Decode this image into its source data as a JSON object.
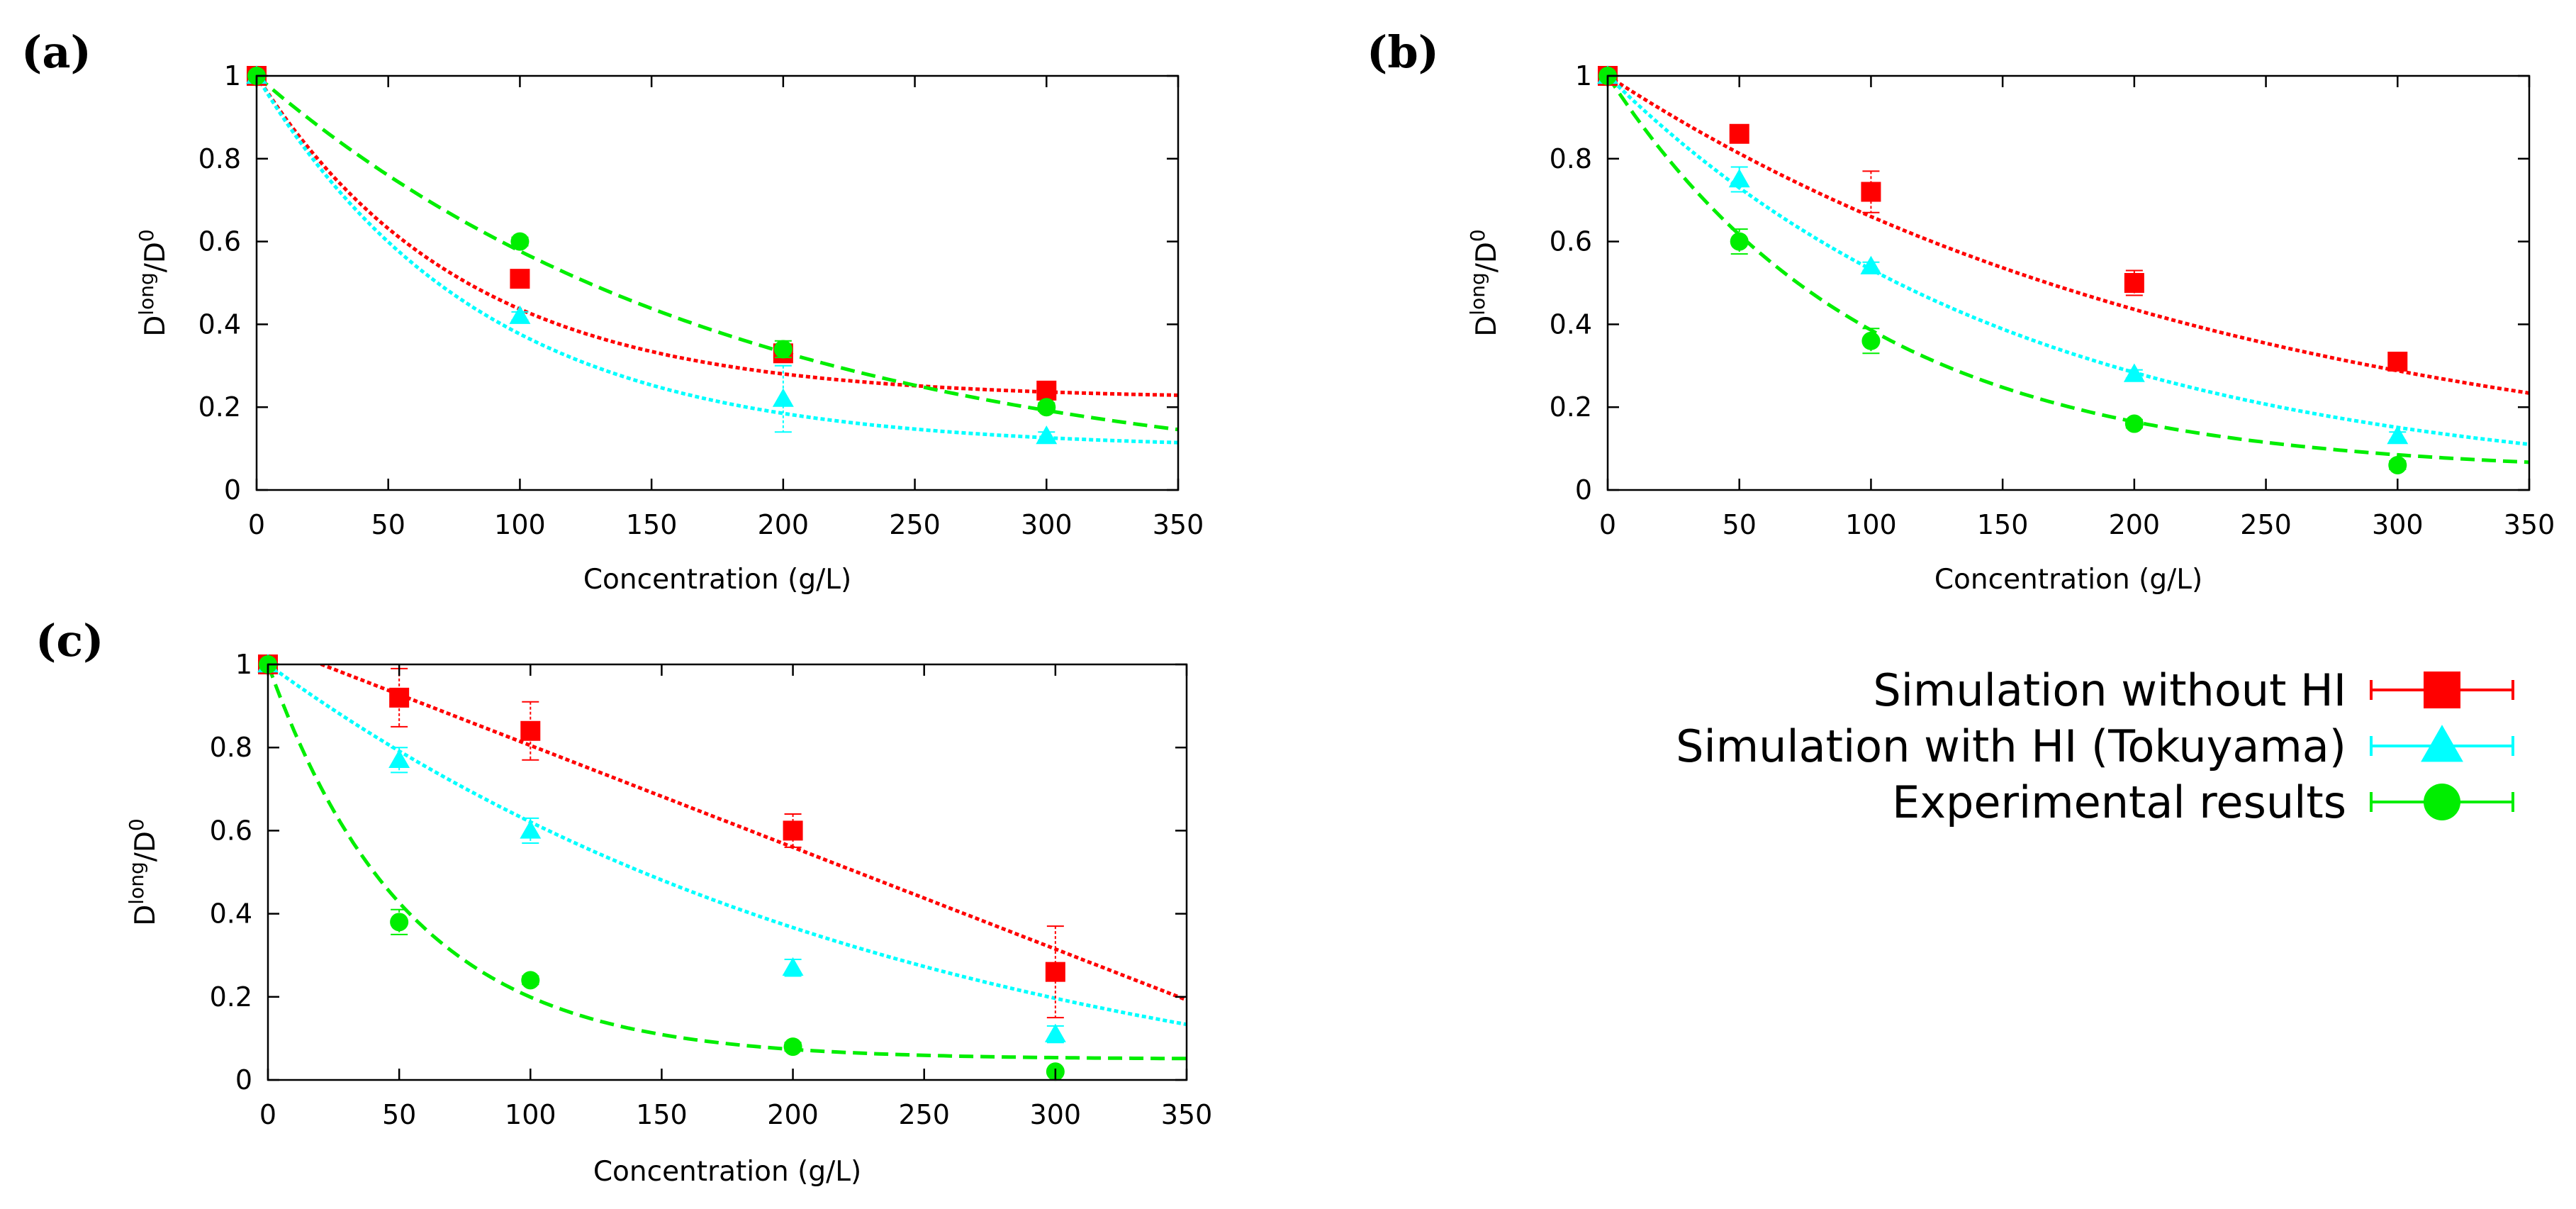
{
  "chart_data": [
    {
      "type": "line",
      "panel_label": "(a)",
      "xlabel": "Concentration (g/L)",
      "ylabel_base": "D",
      "ylabel_sup1": "long",
      "ylabel_mid": "/D",
      "ylabel_sup2": "0",
      "xlim": [
        0,
        350
      ],
      "ylim": [
        0,
        1
      ],
      "xticks": [
        "0",
        "50",
        "100",
        "150",
        "200",
        "250",
        "300",
        "350"
      ],
      "yticks": [
        "0",
        "0.2",
        "0.4",
        "0.6",
        "0.8",
        "1"
      ],
      "series": [
        {
          "name": "Simulation without HI",
          "color": "#ff0000",
          "marker": "square",
          "line": "dotted",
          "x": [
            0,
            100,
            200,
            300
          ],
          "y": [
            1.0,
            0.51,
            0.33,
            0.24
          ],
          "err": [
            0,
            0.02,
            0.02,
            0.01
          ],
          "fit": {
            "a": 0.78,
            "k": 0.0128,
            "c": 0.22
          }
        },
        {
          "name": "Simulation with HI (Tokuyama)",
          "color": "#00ffff",
          "marker": "triangle",
          "line": "dotted",
          "x": [
            0,
            100,
            200,
            300
          ],
          "y": [
            1.0,
            0.42,
            0.22,
            0.13
          ],
          "err": [
            0,
            0.01,
            0.08,
            0.01
          ],
          "fit": {
            "a": 0.9,
            "k": 0.0118,
            "c": 0.1
          }
        },
        {
          "name": "Experimental results",
          "color": "#00ee00",
          "marker": "circle",
          "line": "dashed",
          "x": [
            0,
            100,
            200,
            300
          ],
          "y": [
            1.0,
            0.6,
            0.34,
            0.2
          ],
          "err": [
            0,
            0.01,
            0.02,
            0.01
          ],
          "fit": {
            "a": 1.0,
            "k": 0.0055,
            "c": 0.0
          }
        }
      ]
    },
    {
      "type": "line",
      "panel_label": "(b)",
      "xlabel": "Concentration (g/L)",
      "ylabel_base": "D",
      "ylabel_sup1": "long",
      "ylabel_mid": "/D",
      "ylabel_sup2": "0",
      "xlim": [
        0,
        350
      ],
      "ylim": [
        0,
        1
      ],
      "xticks": [
        "0",
        "50",
        "100",
        "150",
        "200",
        "250",
        "300",
        "350"
      ],
      "yticks": [
        "0",
        "0.2",
        "0.4",
        "0.6",
        "0.8",
        "1"
      ],
      "series": [
        {
          "name": "Simulation without HI",
          "color": "#ff0000",
          "marker": "square",
          "line": "dotted",
          "x": [
            0,
            50,
            100,
            200,
            300
          ],
          "y": [
            1.0,
            0.86,
            0.72,
            0.5,
            0.31
          ],
          "err": [
            0,
            0.02,
            0.05,
            0.03,
            0.01
          ],
          "fit": {
            "a": 1.0,
            "k": 0.00415,
            "c": 0.0
          }
        },
        {
          "name": "Simulation with HI (Tokuyama)",
          "color": "#00ffff",
          "marker": "triangle",
          "line": "dotted",
          "x": [
            0,
            50,
            100,
            200,
            300
          ],
          "y": [
            1.0,
            0.75,
            0.54,
            0.28,
            0.13
          ],
          "err": [
            0,
            0.03,
            0.01,
            0.01,
            0.01
          ],
          "fit": {
            "a": 1.0,
            "k": 0.0063,
            "c": 0.0
          }
        },
        {
          "name": "Experimental results",
          "color": "#00ee00",
          "marker": "circle",
          "line": "dashed",
          "x": [
            0,
            50,
            100,
            200,
            300
          ],
          "y": [
            1.0,
            0.6,
            0.36,
            0.16,
            0.06
          ],
          "err": [
            0,
            0.03,
            0.03,
            0.01,
            0.01
          ],
          "fit": {
            "a": 0.96,
            "k": 0.0102,
            "c": 0.04
          }
        }
      ]
    },
    {
      "type": "line",
      "panel_label": "(c)",
      "xlabel": "Concentration (g/L)",
      "ylabel_base": "D",
      "ylabel_sup1": "long",
      "ylabel_mid": "/D",
      "ylabel_sup2": "0",
      "xlim": [
        0,
        350
      ],
      "ylim": [
        0,
        1
      ],
      "xticks": [
        "0",
        "50",
        "100",
        "150",
        "200",
        "250",
        "300",
        "350"
      ],
      "yticks": [
        "0",
        "0.2",
        "0.4",
        "0.6",
        "0.8",
        "1"
      ],
      "series": [
        {
          "name": "Simulation without HI",
          "color": "#ff0000",
          "marker": "square",
          "line": "dotted",
          "x": [
            0,
            50,
            100,
            200,
            300
          ],
          "y": [
            1.0,
            0.92,
            0.84,
            0.6,
            0.26
          ],
          "err": [
            0,
            0.07,
            0.07,
            0.04,
            0.11
          ],
          "fit": {
            "linear": true,
            "y0": 1.05,
            "slope": -0.00245
          }
        },
        {
          "name": "Simulation with HI (Tokuyama)",
          "color": "#00ffff",
          "marker": "triangle",
          "line": "dotted",
          "x": [
            0,
            50,
            100,
            200,
            300
          ],
          "y": [
            1.0,
            0.77,
            0.6,
            0.27,
            0.11
          ],
          "err": [
            0,
            0.03,
            0.03,
            0.02,
            0.02
          ],
          "fit": {
            "a": 1.15,
            "k": 0.004,
            "c": -0.15
          }
        },
        {
          "name": "Experimental results",
          "color": "#00ee00",
          "marker": "circle",
          "line": "dashed",
          "x": [
            0,
            50,
            100,
            200,
            300
          ],
          "y": [
            1.0,
            0.38,
            0.24,
            0.08,
            0.02
          ],
          "err": [
            0,
            0.03,
            0.01,
            0.01,
            0.0
          ],
          "fit": {
            "a": 0.95,
            "k": 0.0185,
            "c": 0.05
          }
        }
      ]
    }
  ],
  "legend": {
    "placement": "bottom-right",
    "items": [
      {
        "label": "Simulation without HI",
        "color": "#ff0000",
        "marker": "square"
      },
      {
        "label": "Simulation with HI (Tokuyama)",
        "color": "#00ffff",
        "marker": "triangle"
      },
      {
        "label": "Experimental results",
        "color": "#00ee00",
        "marker": "circle"
      }
    ]
  }
}
